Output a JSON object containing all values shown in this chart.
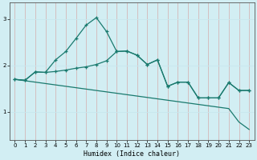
{
  "xlabel": "Humidex (Indice chaleur)",
  "bg_color": "#d2eef3",
  "vgrid_color": "#d4b8b8",
  "hgrid_color": "#c8e8ee",
  "line_color": "#1a7a6e",
  "x_ticks": [
    0,
    1,
    2,
    3,
    4,
    5,
    6,
    7,
    8,
    9,
    10,
    11,
    12,
    13,
    14,
    15,
    16,
    17,
    18,
    19,
    20,
    21,
    22,
    23
  ],
  "y_ticks": [
    1,
    2,
    3
  ],
  "ylim": [
    0.4,
    3.35
  ],
  "xlim": [
    -0.5,
    23.5
  ],
  "curve1_x": [
    0,
    1,
    2,
    3,
    4,
    5,
    6,
    7,
    8,
    9,
    10,
    11,
    12,
    13,
    14,
    15,
    16,
    17,
    18,
    19,
    20,
    21,
    22,
    23
  ],
  "curve1_y": [
    1.7,
    1.68,
    1.86,
    1.85,
    2.12,
    2.3,
    2.58,
    2.87,
    3.03,
    2.73,
    2.3,
    2.31,
    2.22,
    2.02,
    2.12,
    1.55,
    1.64,
    1.64,
    1.3,
    1.3,
    1.3,
    1.63,
    1.46,
    1.46
  ],
  "curve2_x": [
    0,
    1,
    2,
    3,
    4,
    5,
    6,
    7,
    8,
    9,
    10,
    11,
    12,
    13,
    14,
    15,
    16,
    17,
    18,
    19,
    20,
    21,
    22,
    23
  ],
  "curve2_y": [
    1.7,
    1.68,
    1.86,
    1.85,
    1.87,
    1.9,
    1.94,
    1.97,
    2.02,
    2.1,
    2.3,
    2.31,
    2.22,
    2.02,
    2.12,
    1.55,
    1.64,
    1.64,
    1.3,
    1.3,
    1.3,
    1.63,
    1.46,
    1.46
  ],
  "curve3_x": [
    0,
    1,
    2,
    3,
    4,
    5,
    6,
    7,
    8,
    9,
    10,
    11,
    12,
    13,
    14,
    15,
    16,
    17,
    18,
    19,
    20,
    21,
    22,
    23
  ],
  "curve3_y": [
    1.7,
    1.67,
    1.64,
    1.61,
    1.58,
    1.55,
    1.52,
    1.49,
    1.46,
    1.43,
    1.4,
    1.37,
    1.34,
    1.31,
    1.28,
    1.25,
    1.22,
    1.19,
    1.16,
    1.13,
    1.1,
    1.07,
    0.78,
    0.62
  ]
}
